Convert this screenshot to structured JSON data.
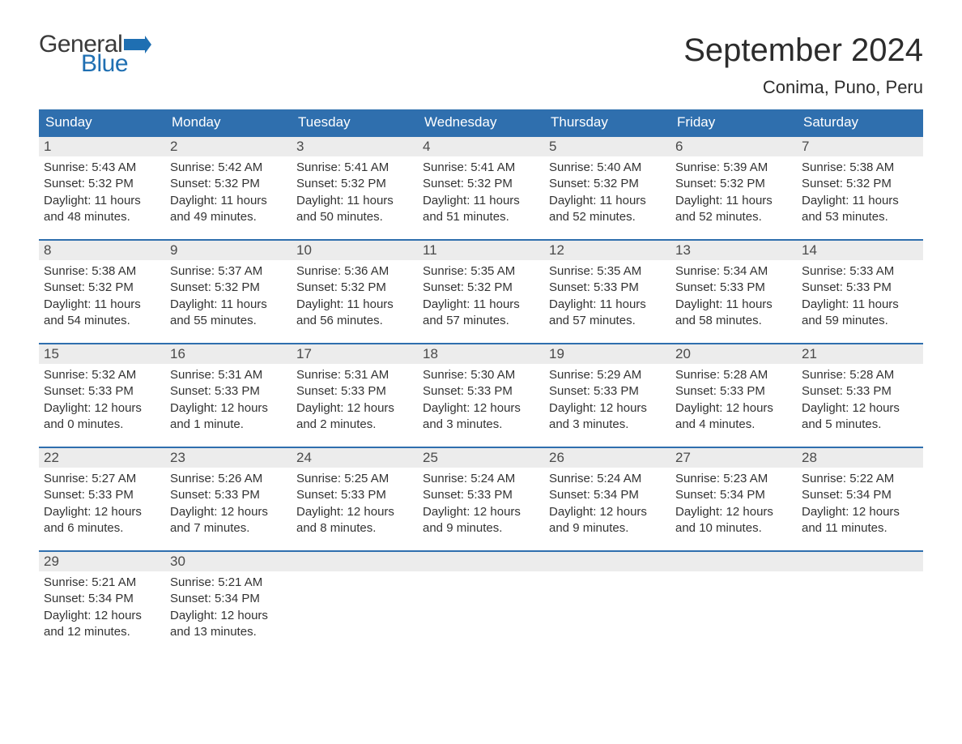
{
  "logo": {
    "word1": "General",
    "word2": "Blue",
    "flag_color": "#1f6fb2"
  },
  "title": "September 2024",
  "location": "Conima, Puno, Peru",
  "colors": {
    "header_bg": "#2f6fae",
    "header_text": "#ffffff",
    "daynum_bg": "#ececec",
    "daynum_text": "#4a4a4a",
    "body_text": "#333333",
    "rule": "#2f6fae",
    "page_bg": "#ffffff"
  },
  "fonts": {
    "title_size_pt": 30,
    "location_size_pt": 16,
    "weekday_size_pt": 13,
    "daynum_size_pt": 13,
    "body_size_pt": 11
  },
  "weekdays": [
    "Sunday",
    "Monday",
    "Tuesday",
    "Wednesday",
    "Thursday",
    "Friday",
    "Saturday"
  ],
  "weeks": [
    [
      {
        "n": "1",
        "sunrise": "Sunrise: 5:43 AM",
        "sunset": "Sunset: 5:32 PM",
        "day1": "Daylight: 11 hours",
        "day2": "and 48 minutes."
      },
      {
        "n": "2",
        "sunrise": "Sunrise: 5:42 AM",
        "sunset": "Sunset: 5:32 PM",
        "day1": "Daylight: 11 hours",
        "day2": "and 49 minutes."
      },
      {
        "n": "3",
        "sunrise": "Sunrise: 5:41 AM",
        "sunset": "Sunset: 5:32 PM",
        "day1": "Daylight: 11 hours",
        "day2": "and 50 minutes."
      },
      {
        "n": "4",
        "sunrise": "Sunrise: 5:41 AM",
        "sunset": "Sunset: 5:32 PM",
        "day1": "Daylight: 11 hours",
        "day2": "and 51 minutes."
      },
      {
        "n": "5",
        "sunrise": "Sunrise: 5:40 AM",
        "sunset": "Sunset: 5:32 PM",
        "day1": "Daylight: 11 hours",
        "day2": "and 52 minutes."
      },
      {
        "n": "6",
        "sunrise": "Sunrise: 5:39 AM",
        "sunset": "Sunset: 5:32 PM",
        "day1": "Daylight: 11 hours",
        "day2": "and 52 minutes."
      },
      {
        "n": "7",
        "sunrise": "Sunrise: 5:38 AM",
        "sunset": "Sunset: 5:32 PM",
        "day1": "Daylight: 11 hours",
        "day2": "and 53 minutes."
      }
    ],
    [
      {
        "n": "8",
        "sunrise": "Sunrise: 5:38 AM",
        "sunset": "Sunset: 5:32 PM",
        "day1": "Daylight: 11 hours",
        "day2": "and 54 minutes."
      },
      {
        "n": "9",
        "sunrise": "Sunrise: 5:37 AM",
        "sunset": "Sunset: 5:32 PM",
        "day1": "Daylight: 11 hours",
        "day2": "and 55 minutes."
      },
      {
        "n": "10",
        "sunrise": "Sunrise: 5:36 AM",
        "sunset": "Sunset: 5:32 PM",
        "day1": "Daylight: 11 hours",
        "day2": "and 56 minutes."
      },
      {
        "n": "11",
        "sunrise": "Sunrise: 5:35 AM",
        "sunset": "Sunset: 5:32 PM",
        "day1": "Daylight: 11 hours",
        "day2": "and 57 minutes."
      },
      {
        "n": "12",
        "sunrise": "Sunrise: 5:35 AM",
        "sunset": "Sunset: 5:33 PM",
        "day1": "Daylight: 11 hours",
        "day2": "and 57 minutes."
      },
      {
        "n": "13",
        "sunrise": "Sunrise: 5:34 AM",
        "sunset": "Sunset: 5:33 PM",
        "day1": "Daylight: 11 hours",
        "day2": "and 58 minutes."
      },
      {
        "n": "14",
        "sunrise": "Sunrise: 5:33 AM",
        "sunset": "Sunset: 5:33 PM",
        "day1": "Daylight: 11 hours",
        "day2": "and 59 minutes."
      }
    ],
    [
      {
        "n": "15",
        "sunrise": "Sunrise: 5:32 AM",
        "sunset": "Sunset: 5:33 PM",
        "day1": "Daylight: 12 hours",
        "day2": "and 0 minutes."
      },
      {
        "n": "16",
        "sunrise": "Sunrise: 5:31 AM",
        "sunset": "Sunset: 5:33 PM",
        "day1": "Daylight: 12 hours",
        "day2": "and 1 minute."
      },
      {
        "n": "17",
        "sunrise": "Sunrise: 5:31 AM",
        "sunset": "Sunset: 5:33 PM",
        "day1": "Daylight: 12 hours",
        "day2": "and 2 minutes."
      },
      {
        "n": "18",
        "sunrise": "Sunrise: 5:30 AM",
        "sunset": "Sunset: 5:33 PM",
        "day1": "Daylight: 12 hours",
        "day2": "and 3 minutes."
      },
      {
        "n": "19",
        "sunrise": "Sunrise: 5:29 AM",
        "sunset": "Sunset: 5:33 PM",
        "day1": "Daylight: 12 hours",
        "day2": "and 3 minutes."
      },
      {
        "n": "20",
        "sunrise": "Sunrise: 5:28 AM",
        "sunset": "Sunset: 5:33 PM",
        "day1": "Daylight: 12 hours",
        "day2": "and 4 minutes."
      },
      {
        "n": "21",
        "sunrise": "Sunrise: 5:28 AM",
        "sunset": "Sunset: 5:33 PM",
        "day1": "Daylight: 12 hours",
        "day2": "and 5 minutes."
      }
    ],
    [
      {
        "n": "22",
        "sunrise": "Sunrise: 5:27 AM",
        "sunset": "Sunset: 5:33 PM",
        "day1": "Daylight: 12 hours",
        "day2": "and 6 minutes."
      },
      {
        "n": "23",
        "sunrise": "Sunrise: 5:26 AM",
        "sunset": "Sunset: 5:33 PM",
        "day1": "Daylight: 12 hours",
        "day2": "and 7 minutes."
      },
      {
        "n": "24",
        "sunrise": "Sunrise: 5:25 AM",
        "sunset": "Sunset: 5:33 PM",
        "day1": "Daylight: 12 hours",
        "day2": "and 8 minutes."
      },
      {
        "n": "25",
        "sunrise": "Sunrise: 5:24 AM",
        "sunset": "Sunset: 5:33 PM",
        "day1": "Daylight: 12 hours",
        "day2": "and 9 minutes."
      },
      {
        "n": "26",
        "sunrise": "Sunrise: 5:24 AM",
        "sunset": "Sunset: 5:34 PM",
        "day1": "Daylight: 12 hours",
        "day2": "and 9 minutes."
      },
      {
        "n": "27",
        "sunrise": "Sunrise: 5:23 AM",
        "sunset": "Sunset: 5:34 PM",
        "day1": "Daylight: 12 hours",
        "day2": "and 10 minutes."
      },
      {
        "n": "28",
        "sunrise": "Sunrise: 5:22 AM",
        "sunset": "Sunset: 5:34 PM",
        "day1": "Daylight: 12 hours",
        "day2": "and 11 minutes."
      }
    ],
    [
      {
        "n": "29",
        "sunrise": "Sunrise: 5:21 AM",
        "sunset": "Sunset: 5:34 PM",
        "day1": "Daylight: 12 hours",
        "day2": "and 12 minutes."
      },
      {
        "n": "30",
        "sunrise": "Sunrise: 5:21 AM",
        "sunset": "Sunset: 5:34 PM",
        "day1": "Daylight: 12 hours",
        "day2": "and 13 minutes."
      },
      {
        "empty": true
      },
      {
        "empty": true
      },
      {
        "empty": true
      },
      {
        "empty": true
      },
      {
        "empty": true
      }
    ]
  ]
}
